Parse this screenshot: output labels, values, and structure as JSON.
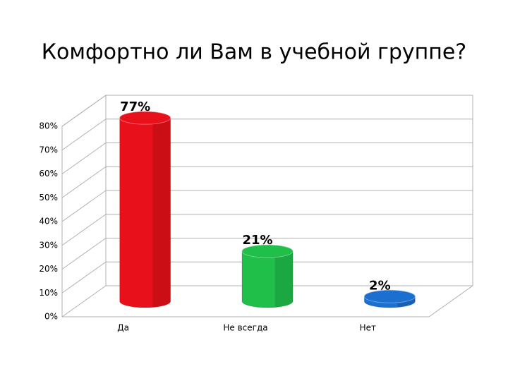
{
  "chart_data": {
    "type": "bar3d",
    "title": "Комфортно ли Вам в учебной группе?",
    "categories": [
      "Да",
      "Не всегда",
      "Нет"
    ],
    "values": [
      77,
      21,
      2
    ],
    "value_labels": [
      "77%",
      "21%",
      "2%"
    ],
    "colors": [
      "#e8101a",
      "#1fbf4a",
      "#1a6fd0"
    ],
    "ylim": [
      0,
      80
    ],
    "yticks": [
      {
        "value": 0,
        "label": "0%"
      },
      {
        "value": 10,
        "label": "10%"
      },
      {
        "value": 20,
        "label": "20%"
      },
      {
        "value": 30,
        "label": "30%"
      },
      {
        "value": 40,
        "label": "40%"
      },
      {
        "value": 50,
        "label": "50%"
      },
      {
        "value": 60,
        "label": "60%"
      },
      {
        "value": 70,
        "label": "70%"
      },
      {
        "value": 80,
        "label": "80%"
      }
    ],
    "grid": true
  }
}
